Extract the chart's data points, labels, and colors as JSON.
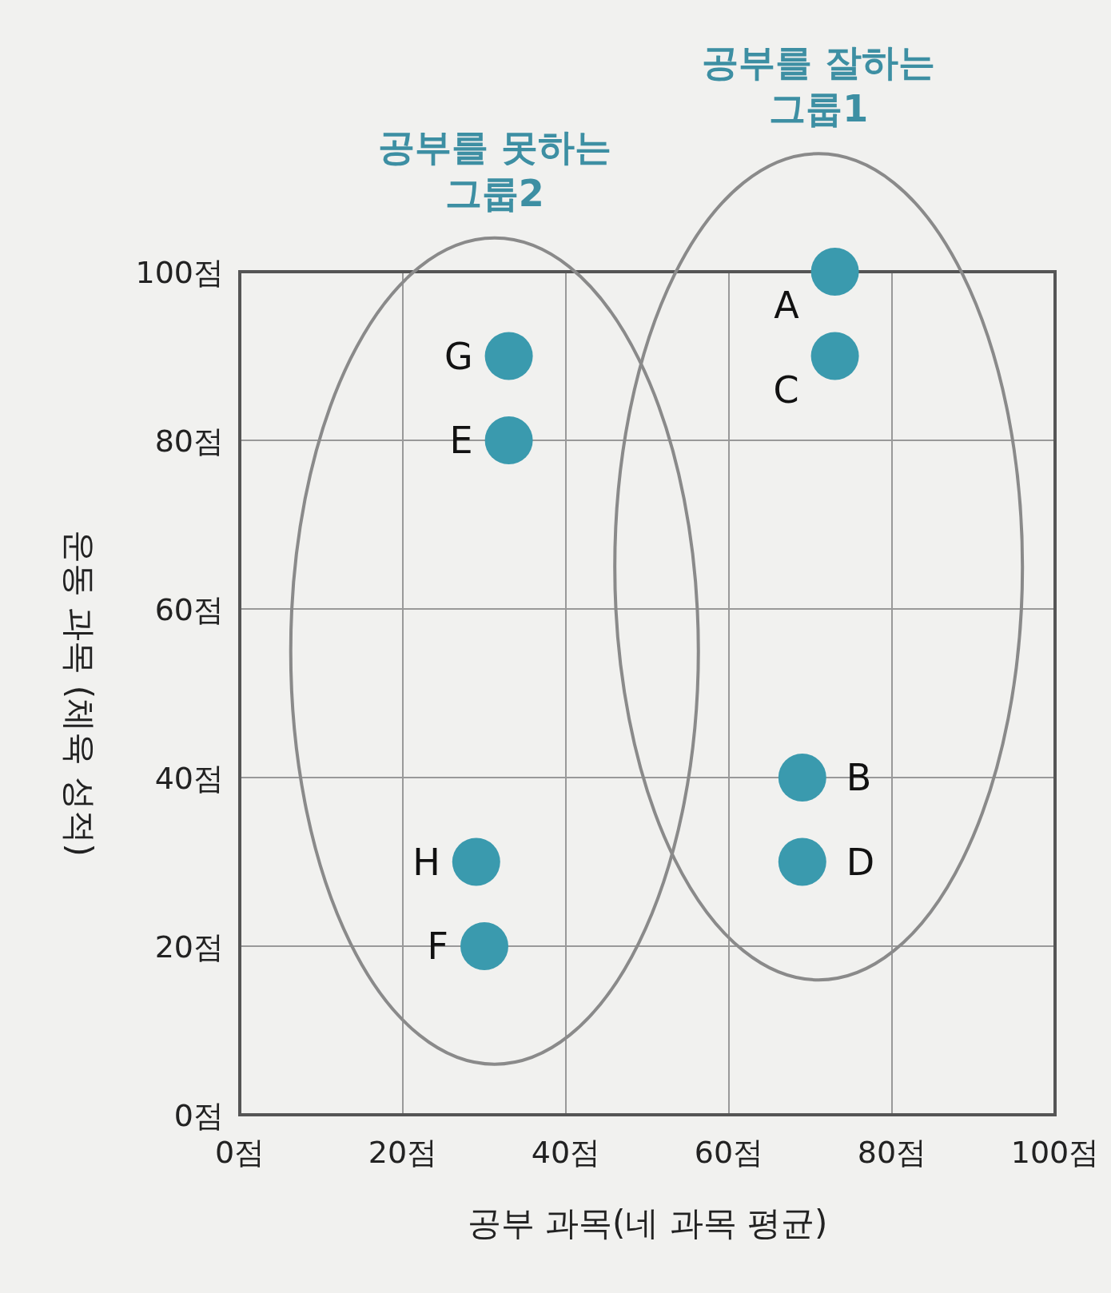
{
  "chart_data": {
    "type": "scatter",
    "xlabel": "공부 과목(네 과목 평균)",
    "ylabel": "운동 과목 (체육 성적)",
    "annotations": [
      "공부를 못하는\n그룹2",
      "공부를 잘하는\n그룹1"
    ],
    "x": [
      73,
      69,
      73,
      69,
      33,
      30,
      33,
      29
    ],
    "series": [
      {
        "color": "#3a9aae",
        "values": [
          100,
          40,
          90,
          30,
          80,
          20,
          90,
          30
        ],
        "value_labels": [
          "A",
          "B",
          "C",
          "D",
          "E",
          "F",
          "G",
          "H"
        ]
      }
    ],
    "xlim": [
      0,
      100
    ],
    "ylim": [
      0,
      100
    ],
    "xticks": [
      {
        "value": 0,
        "label": "0점"
      },
      {
        "value": 20,
        "label": "20점"
      },
      {
        "value": 40,
        "label": "40점"
      },
      {
        "value": 60,
        "label": "60점"
      },
      {
        "value": 80,
        "label": "80점"
      },
      {
        "value": 100,
        "label": "100점"
      }
    ],
    "yticks": [
      {
        "value": 0,
        "label": "0점"
      },
      {
        "value": 20,
        "label": "20점"
      },
      {
        "value": 40,
        "label": "40점"
      },
      {
        "value": 60,
        "label": "60점"
      },
      {
        "value": 80,
        "label": "80점"
      },
      {
        "value": 100,
        "label": "100점"
      }
    ],
    "grid": true,
    "marker": "circle"
  }
}
